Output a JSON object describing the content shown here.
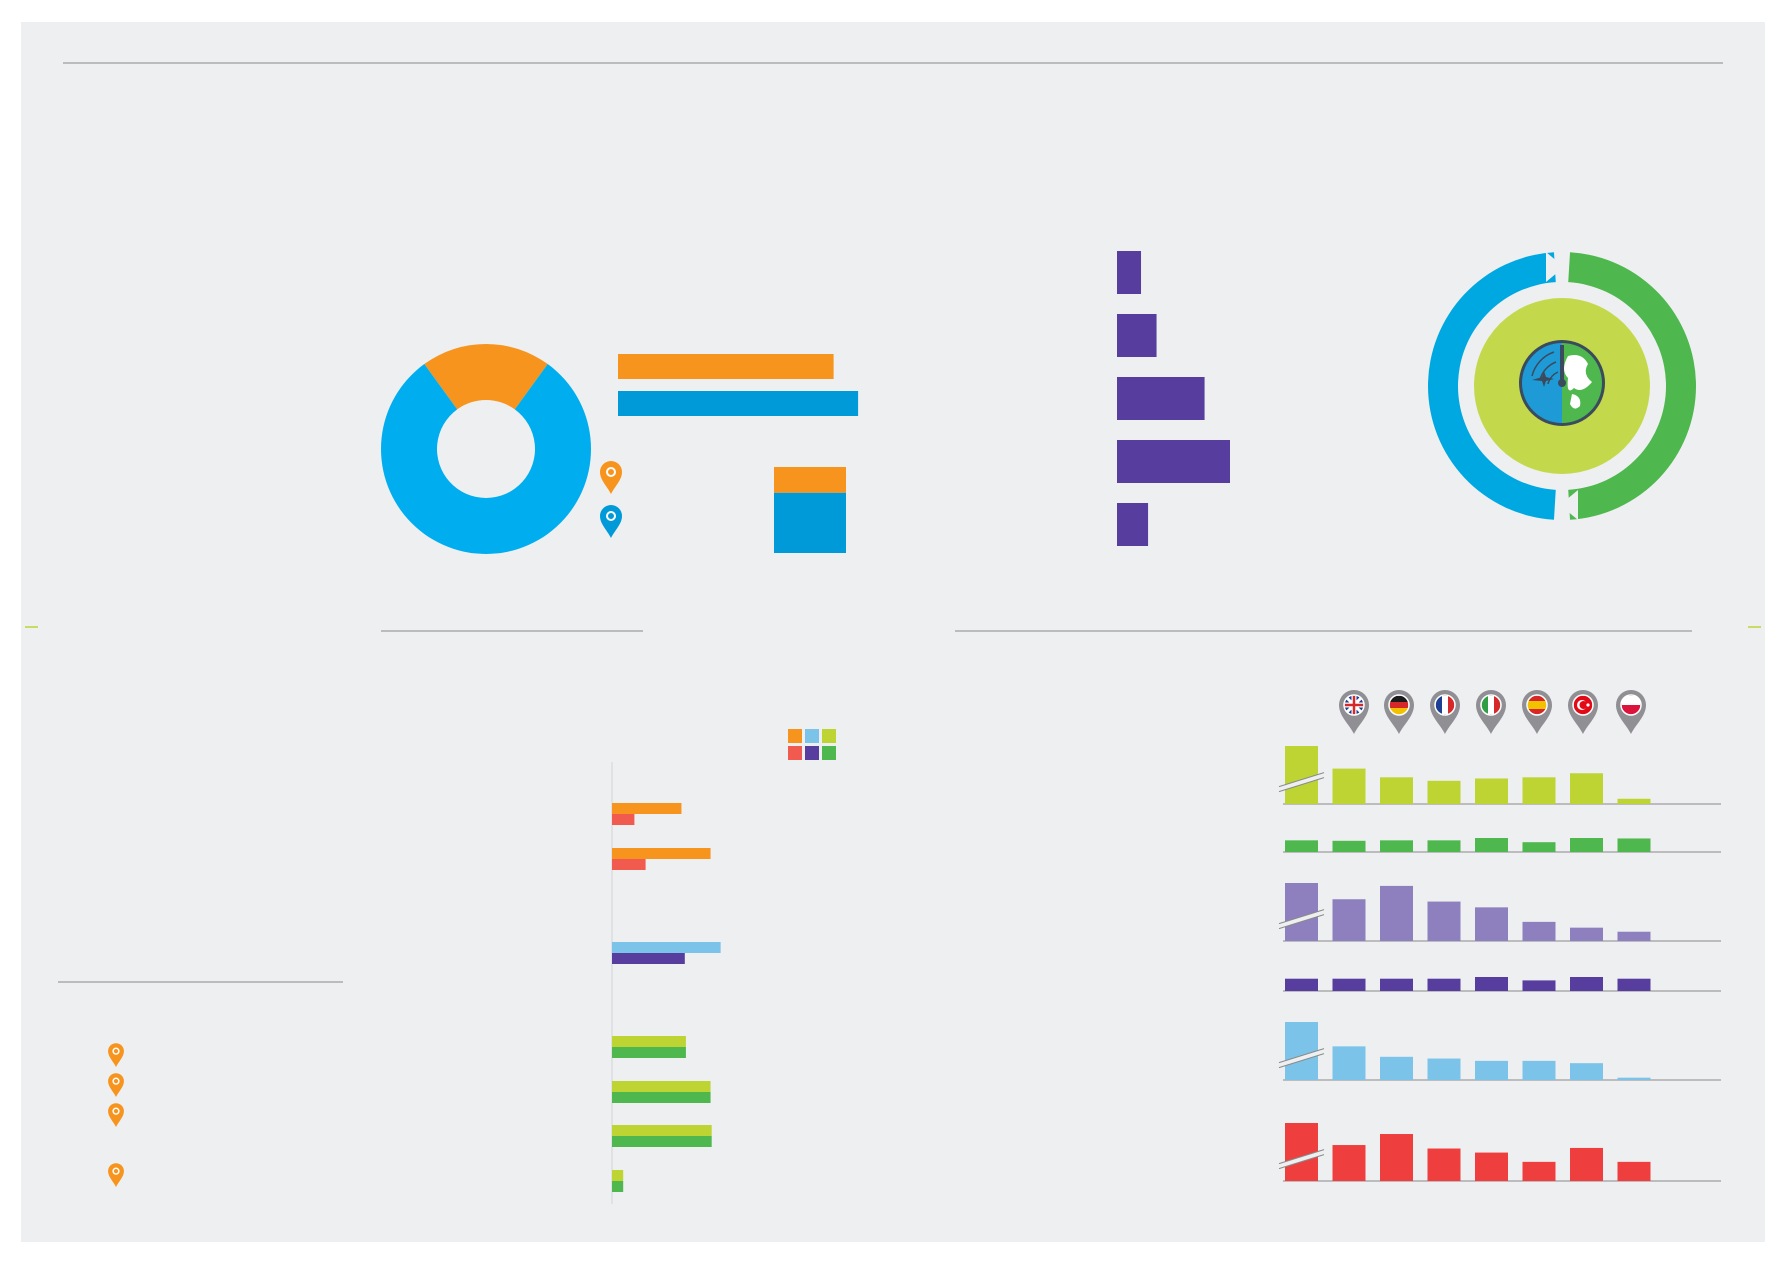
{
  "palette": {
    "page": "#ffffff",
    "panel": "#eeeff1",
    "rule": "#8a8a8a",
    "orange": "#f7941d",
    "sky": "#00aeef",
    "blue": "#009ad9",
    "purple": "#573e9e",
    "lime": "#bdd433",
    "green": "#4eb74e",
    "lavender": "#8e7fbf",
    "lightblue": "#7cc3ea",
    "red": "#ee3e3e",
    "coral": "#f15a4f",
    "teal": "#00a8e1",
    "limeRing": "#c3d94b"
  },
  "icons": {
    "pin": "map-pin-icon",
    "globe": "radar-globe-icon",
    "flags": [
      "uk-flag-icon",
      "germany-flag-icon",
      "france-flag-icon",
      "italy-flag-icon",
      "spain-flag-icon",
      "turkey-flag-icon",
      "poland-flag-icon"
    ]
  },
  "chart_data": [
    {
      "type": "pie",
      "variant": "donut",
      "values": [
        20,
        80
      ],
      "colors": [
        "orange",
        "sky"
      ]
    },
    {
      "type": "bar",
      "orientation": "horizontal",
      "values": [
        88,
        98
      ],
      "colors": [
        "orange",
        "blue"
      ]
    },
    {
      "type": "bar",
      "stacked": true,
      "values": [
        [
          30,
          70
        ]
      ],
      "colors": [
        "orange",
        "blue"
      ]
    },
    {
      "type": "bar",
      "orientation": "horizontal",
      "values": [
        17,
        28,
        62,
        80,
        22
      ],
      "colors": [
        "purple"
      ]
    },
    {
      "type": "pie",
      "variant": "ring-cycle",
      "values": [
        50,
        50
      ],
      "colors": [
        "teal",
        "green"
      ]
    },
    {
      "type": "bar",
      "orientation": "horizontal",
      "grouped": true,
      "groups": [
        {
          "values": [
            62,
            20
          ],
          "colors": [
            "orange",
            "coral"
          ]
        },
        {
          "values": [
            88,
            30
          ],
          "colors": [
            "orange",
            "coral"
          ]
        },
        {
          "values": [
            97,
            65
          ],
          "colors": [
            "lightblue",
            "purple"
          ]
        },
        {
          "values": [
            66,
            66
          ],
          "colors": [
            "lime",
            "green"
          ]
        },
        {
          "values": [
            88,
            88
          ],
          "colors": [
            "lime",
            "green"
          ]
        },
        {
          "values": [
            89,
            89
          ],
          "colors": [
            "lime",
            "green"
          ]
        },
        {
          "values": [
            10,
            10
          ],
          "colors": [
            "lime",
            "green"
          ]
        }
      ],
      "legend_swatches": [
        "orange",
        "lightblue",
        "lime",
        "coral",
        "purple",
        "green"
      ]
    },
    {
      "type": "bar",
      "small_multiples": true,
      "category_count": 8,
      "series": [
        {
          "color": "lime",
          "values": [
            100,
            61,
            46,
            40,
            44,
            46,
            53,
            9
          ],
          "axis_break": true
        },
        {
          "color": "green",
          "values": [
            50,
            48,
            50,
            50,
            60,
            42,
            60,
            58
          ]
        },
        {
          "color": "lavender",
          "values": [
            100,
            72,
            95,
            68,
            58,
            33,
            23,
            16
          ],
          "axis_break": true
        },
        {
          "color": "purple",
          "values": [
            58,
            58,
            58,
            58,
            66,
            50,
            66,
            58
          ]
        },
        {
          "color": "lightblue",
          "values": [
            100,
            58,
            40,
            37,
            33,
            33,
            29,
            4
          ],
          "axis_break": true
        },
        {
          "color": "red",
          "values": [
            100,
            62,
            81,
            56,
            49,
            33,
            57,
            33
          ],
          "axis_break": true
        }
      ]
    }
  ]
}
